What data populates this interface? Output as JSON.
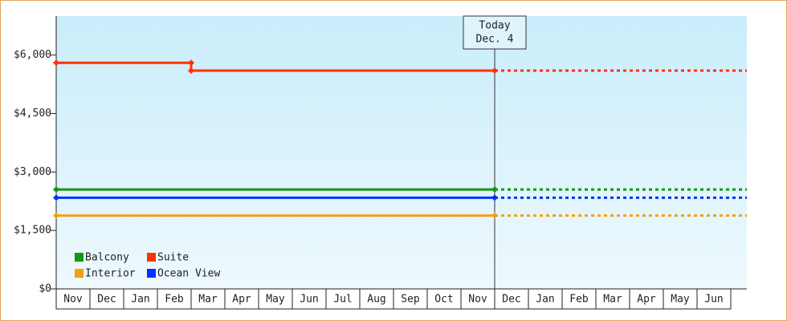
{
  "chart_data": {
    "type": "step-line",
    "categories": [
      "Nov",
      "Dec",
      "Jan",
      "Feb",
      "Mar",
      "Apr",
      "May",
      "Jun",
      "Jul",
      "Aug",
      "Sep",
      "Oct",
      "Nov",
      "Dec",
      "Jan",
      "Feb",
      "Mar",
      "Apr",
      "May",
      "Jun"
    ],
    "series": [
      {
        "name": "Balcony",
        "color": "#119911",
        "values": [
          2550,
          2550,
          2550,
          2550,
          2550,
          2550,
          2550,
          2550,
          2550,
          2550,
          2550,
          2550,
          2550,
          null,
          null,
          null,
          null,
          null,
          null,
          null
        ]
      },
      {
        "name": "Suite",
        "color": "#ff3300",
        "values": [
          5800,
          5800,
          5800,
          5800,
          5600,
          5600,
          5600,
          5600,
          5600,
          5600,
          5600,
          5600,
          5600,
          null,
          null,
          null,
          null,
          null,
          null,
          null
        ]
      },
      {
        "name": "Interior",
        "color": "#f5a010",
        "values": [
          1880,
          1880,
          1880,
          1880,
          1880,
          1880,
          1880,
          1880,
          1880,
          1880,
          1880,
          1880,
          1880,
          null,
          null,
          null,
          null,
          null,
          null,
          null
        ]
      },
      {
        "name": "Ocean View",
        "color": "#0033ff",
        "values": [
          2340,
          2340,
          2340,
          2340,
          2340,
          2340,
          2340,
          2340,
          2340,
          2340,
          2340,
          2340,
          2340,
          null,
          null,
          null,
          null,
          null,
          null,
          null
        ]
      }
    ],
    "ylim": [
      0,
      7000
    ],
    "yticks": [
      {
        "value": 0,
        "label": "$0"
      },
      {
        "value": 1500,
        "label": "$1,500"
      },
      {
        "value": 3000,
        "label": "$3,000"
      },
      {
        "value": 4500,
        "label": "$4,500"
      },
      {
        "value": 6000,
        "label": "$6,000"
      }
    ],
    "annotation": {
      "title": "Today",
      "date": "Dec. 4"
    },
    "legend": "lower-left"
  }
}
